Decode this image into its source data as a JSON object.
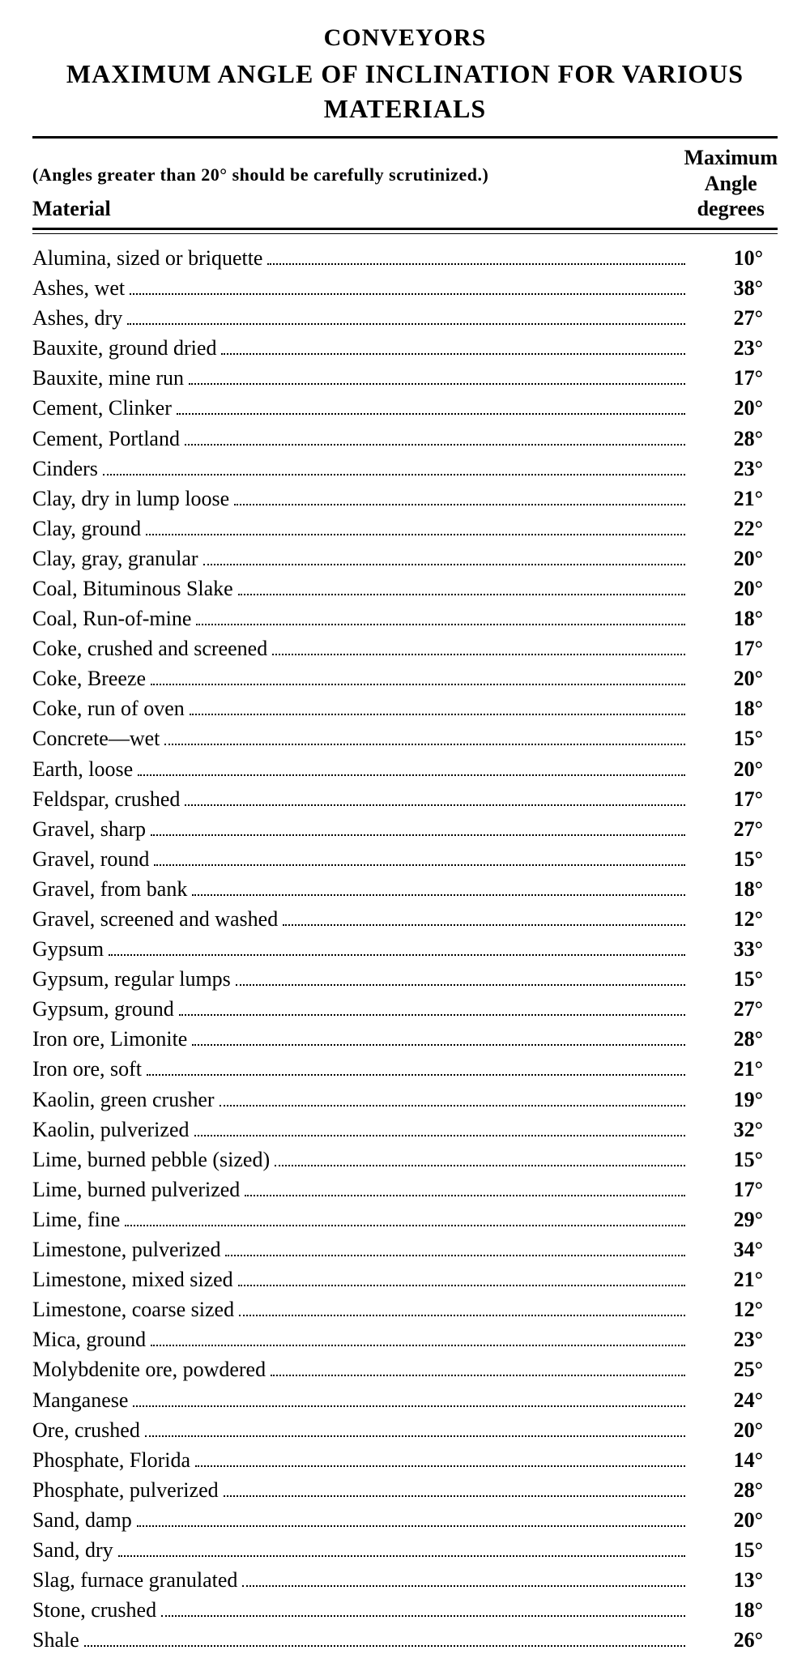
{
  "titles": {
    "line1": "CONVEYORS",
    "line2": "MAXIMUM ANGLE OF INCLINATION FOR VARIOUS MATERIALS"
  },
  "header": {
    "note": "(Angles greater than 20° should be carefully scrutinized.)",
    "material_label": "Material",
    "angle_label_l1": "Maximum",
    "angle_label_l2": "Angle",
    "angle_label_l3": "degrees"
  },
  "rows": [
    {
      "material": "Alumina, sized or briquette",
      "angle": "10°"
    },
    {
      "material": "Ashes, wet",
      "angle": "38°"
    },
    {
      "material": "Ashes, dry",
      "angle": "27°"
    },
    {
      "material": "Bauxite, ground dried",
      "angle": "23°"
    },
    {
      "material": "Bauxite, mine run",
      "angle": "17°"
    },
    {
      "material": "Cement, Clinker",
      "angle": "20°"
    },
    {
      "material": "Cement, Portland",
      "angle": "28°"
    },
    {
      "material": "Cinders",
      "angle": "23°"
    },
    {
      "material": "Clay, dry in lump loose",
      "angle": "21°"
    },
    {
      "material": "Clay, ground",
      "angle": "22°"
    },
    {
      "material": "Clay, gray, granular",
      "angle": "20°"
    },
    {
      "material": "Coal, Bituminous Slake",
      "angle": "20°"
    },
    {
      "material": "Coal, Run-of-mine",
      "angle": "18°"
    },
    {
      "material": "Coke, crushed and screened",
      "angle": "17°"
    },
    {
      "material": "Coke, Breeze",
      "angle": "20°"
    },
    {
      "material": "Coke, run of oven",
      "angle": "18°"
    },
    {
      "material": "Concrete—wet",
      "angle": "15°"
    },
    {
      "material": "Earth, loose",
      "angle": "20°"
    },
    {
      "material": "Feldspar, crushed",
      "angle": "17°"
    },
    {
      "material": "Gravel, sharp",
      "angle": "27°"
    },
    {
      "material": "Gravel, round",
      "angle": "15°"
    },
    {
      "material": "Gravel, from bank",
      "angle": "18°"
    },
    {
      "material": "Gravel, screened and washed",
      "angle": "12°"
    },
    {
      "material": "Gypsum",
      "angle": "33°"
    },
    {
      "material": "Gypsum, regular lumps",
      "angle": "15°"
    },
    {
      "material": "Gypsum, ground",
      "angle": "27°"
    },
    {
      "material": "Iron ore, Limonite",
      "angle": "28°"
    },
    {
      "material": "Iron ore, soft",
      "angle": "21°"
    },
    {
      "material": "Kaolin, green crusher",
      "angle": "19°"
    },
    {
      "material": "Kaolin, pulverized",
      "angle": "32°"
    },
    {
      "material": "Lime, burned pebble (sized)",
      "angle": "15°"
    },
    {
      "material": "Lime, burned pulverized",
      "angle": "17°"
    },
    {
      "material": "Lime, fine",
      "angle": "29°"
    },
    {
      "material": "Limestone, pulverized",
      "angle": "34°"
    },
    {
      "material": "Limestone, mixed sized",
      "angle": "21°"
    },
    {
      "material": "Limestone, coarse sized",
      "angle": "12°"
    },
    {
      "material": "Mica, ground",
      "angle": "23°"
    },
    {
      "material": "Molybdenite ore, powdered",
      "angle": "25°"
    },
    {
      "material": "Manganese",
      "angle": "24°"
    },
    {
      "material": "Ore, crushed",
      "angle": "20°"
    },
    {
      "material": "Phosphate, Florida",
      "angle": "14°"
    },
    {
      "material": "Phosphate, pulverized",
      "angle": "28°"
    },
    {
      "material": "Sand, damp",
      "angle": "20°"
    },
    {
      "material": "Sand, dry",
      "angle": "15°"
    },
    {
      "material": "Slag, furnace granulated",
      "angle": "13°"
    },
    {
      "material": "Stone, crushed",
      "angle": "18°"
    },
    {
      "material": "Shale",
      "angle": "26°"
    }
  ]
}
